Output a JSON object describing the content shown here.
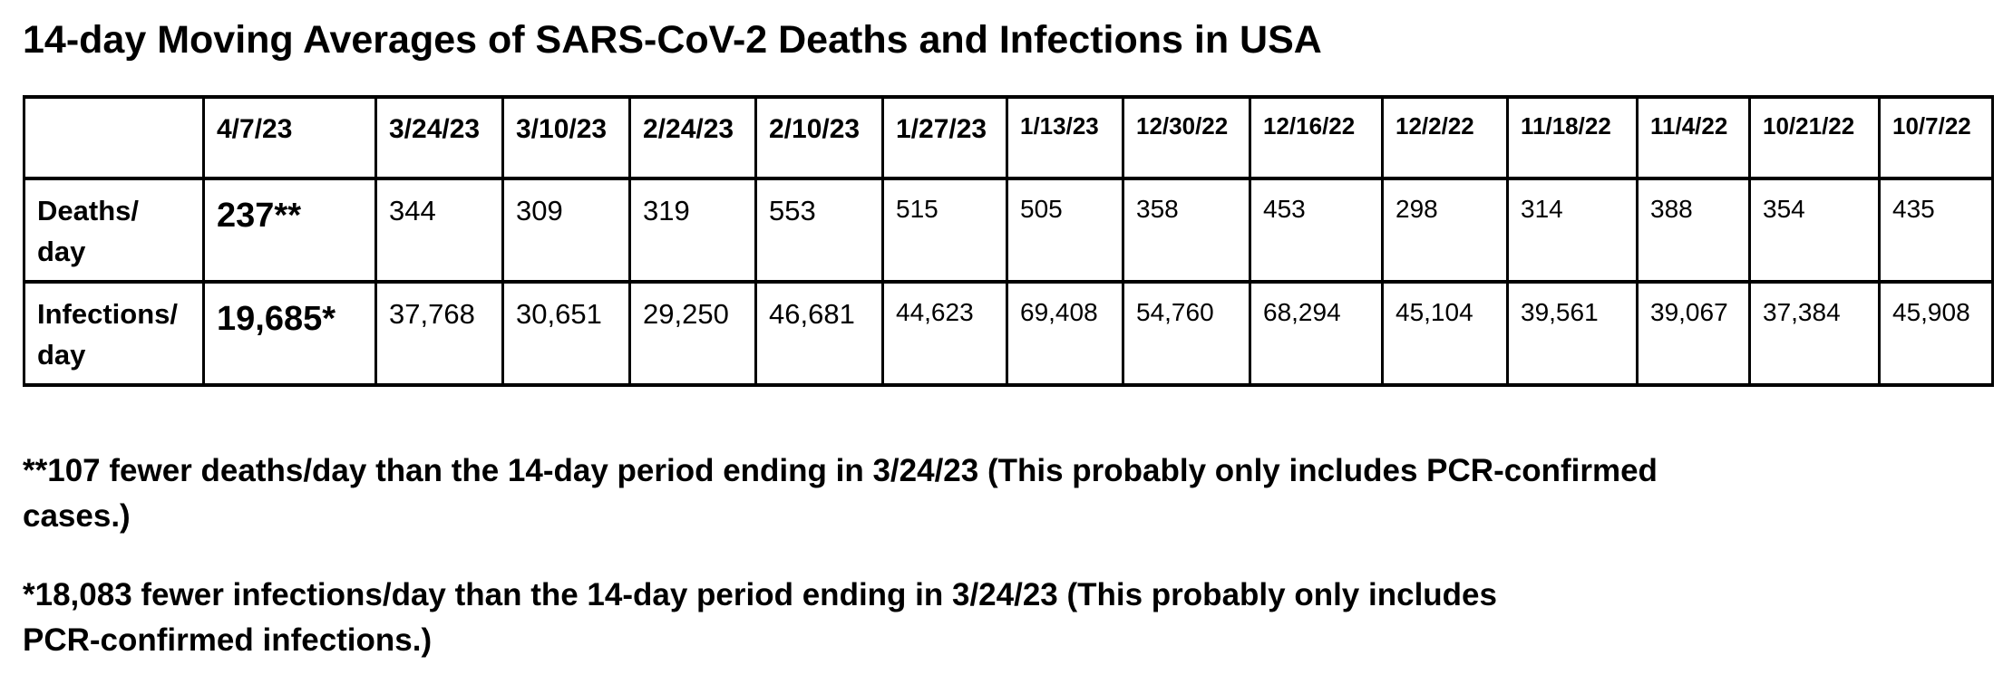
{
  "title": "14-day Moving Averages of SARS-CoV-2 Deaths and Infections in USA",
  "table": {
    "corner_label": "",
    "columns": [
      "4/7/23",
      "3/24/23",
      "3/10/23",
      "2/24/23",
      "2/10/23",
      "1/27/23",
      "1/13/23",
      "12/30/22",
      "12/16/22",
      "12/2/22",
      "11/18/22",
      "11/4/22",
      "10/21/22",
      "10/7/22"
    ],
    "rows": [
      {
        "label_lines": [
          "Deaths/",
          "day"
        ],
        "values": [
          "237**",
          "344",
          "309",
          "319",
          "553",
          "515",
          "505",
          "358",
          "453",
          "298",
          "314",
          "388",
          "354",
          "435"
        ]
      },
      {
        "label_lines": [
          "Infections/",
          "day"
        ],
        "values": [
          "19,685*",
          "37,768",
          "30,651",
          "29,250",
          "46,681",
          "44,623",
          "69,408",
          "54,760",
          "68,294",
          "45,104",
          "39,561",
          "39,067",
          "37,384",
          "45,908"
        ]
      }
    ]
  },
  "footnotes": [
    {
      "lines": [
        "**107 fewer deaths/day than the 14-day period ending in 3/24/23 (This probably only includes PCR-confirmed",
        "cases.)"
      ]
    },
    {
      "lines": [
        "*18,083 fewer infections/day than the 14-day period ending in 3/24/23 (This probably only includes",
        "PCR-confirmed infections.)"
      ]
    }
  ],
  "colors": {
    "text": "#000000",
    "background": "#ffffff",
    "border": "#000000"
  }
}
